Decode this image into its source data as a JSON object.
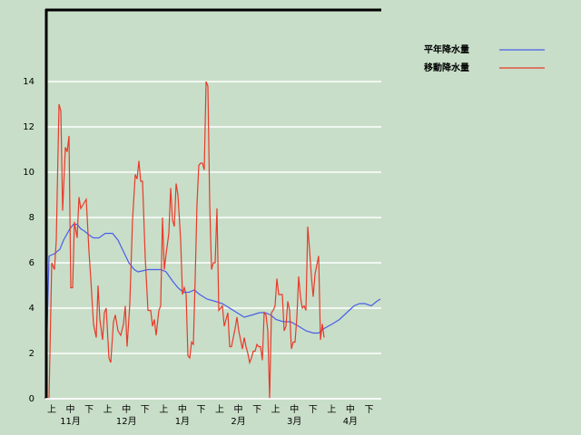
{
  "chart_data": {
    "type": "line",
    "categories": [
      "上",
      "中",
      "下",
      "上",
      "中",
      "下",
      "上",
      "中",
      "下",
      "上",
      "中",
      "下",
      "上",
      "中",
      "下",
      "上",
      "中",
      "下"
    ],
    "month_labels": [
      "11月",
      "12月",
      "1月",
      "2月",
      "3月",
      "4月"
    ],
    "xlim": [
      0,
      370
    ],
    "ylim": [
      0,
      17.2
    ],
    "yticks": [
      0,
      2,
      4,
      6,
      8,
      10,
      12,
      14
    ],
    "grid": true,
    "legend": "right",
    "series": [
      {
        "name": "平年降水量",
        "color": "#4a5ee8",
        "x": [
          0,
          4,
          10,
          16,
          20,
          27,
          31,
          35,
          39,
          43,
          49,
          53,
          59,
          66,
          74,
          80,
          86,
          92,
          98,
          102,
          113,
          127,
          133,
          140,
          146,
          152,
          158,
          164,
          170,
          178,
          187,
          195,
          203,
          211,
          219,
          228,
          236,
          242,
          248,
          254,
          262,
          270,
          279,
          287,
          295,
          301,
          307,
          316,
          324,
          332,
          340,
          346,
          352,
          359,
          365,
          369
        ],
        "values": [
          0,
          6.3,
          6.4,
          6.6,
          7.0,
          7.5,
          7.7,
          7.7,
          7.5,
          7.4,
          7.2,
          7.1,
          7.1,
          7.3,
          7.3,
          7.0,
          6.5,
          6.0,
          5.7,
          5.6,
          5.7,
          5.7,
          5.6,
          5.2,
          4.9,
          4.7,
          4.7,
          4.8,
          4.6,
          4.4,
          4.3,
          4.2,
          4.0,
          3.8,
          3.6,
          3.7,
          3.8,
          3.8,
          3.7,
          3.5,
          3.4,
          3.4,
          3.2,
          3.0,
          2.9,
          2.9,
          3.1,
          3.3,
          3.5,
          3.8,
          4.1,
          4.2,
          4.2,
          4.1,
          4.3,
          4.4
        ]
      },
      {
        "name": "移動降水量",
        "color": "#e83a2a",
        "x": [
          4,
          7,
          10,
          12,
          15,
          17,
          19,
          22,
          24,
          26,
          28,
          30,
          32,
          35,
          37,
          39,
          42,
          45,
          48,
          50,
          53,
          56,
          58,
          60,
          63,
          65,
          67,
          70,
          72,
          75,
          77,
          80,
          83,
          86,
          88,
          90,
          93,
          96,
          99,
          101,
          103,
          105,
          107,
          110,
          113,
          116,
          118,
          120,
          122,
          125,
          127,
          129,
          131,
          133,
          136,
          138,
          140,
          142,
          144,
          146,
          149,
          151,
          153,
          155,
          157,
          159,
          161,
          163,
          165,
          167,
          169,
          171,
          173,
          175,
          177,
          179,
          181,
          183,
          185,
          187,
          189,
          191,
          193,
          195,
          197,
          199,
          201,
          203,
          205,
          207,
          209,
          211,
          213,
          215,
          217,
          219,
          221,
          223,
          225,
          227,
          229,
          231,
          233,
          235,
          237,
          239,
          241,
          243,
          245,
          247,
          249,
          251,
          253,
          255,
          257,
          259,
          261,
          263,
          265,
          267,
          269,
          271,
          273,
          275,
          277,
          279,
          281,
          283,
          285,
          287,
          289,
          291,
          293,
          295,
          297,
          299,
          301,
          303,
          305,
          307
        ],
        "values": [
          0,
          6.0,
          5.7,
          7.0,
          13.0,
          12.7,
          8.3,
          11.1,
          10.9,
          11.6,
          4.9,
          4.9,
          7.8,
          7.1,
          8.9,
          8.4,
          8.6,
          8.8,
          6.5,
          5.3,
          3.3,
          2.7,
          5.0,
          3.5,
          2.6,
          3.8,
          4.0,
          1.8,
          1.6,
          3.4,
          3.7,
          3.0,
          2.8,
          3.3,
          4.1,
          2.3,
          4.2,
          7.9,
          9.9,
          9.7,
          10.5,
          9.6,
          9.6,
          6.2,
          3.9,
          3.9,
          3.2,
          3.5,
          2.8,
          3.9,
          4.1,
          8.0,
          5.7,
          6.4,
          7.3,
          9.3,
          7.9,
          7.6,
          9.5,
          9.0,
          7.0,
          4.6,
          4.9,
          4.6,
          1.9,
          1.8,
          2.5,
          2.4,
          5.3,
          8.6,
          10.3,
          10.4,
          10.4,
          10.1,
          14.0,
          13.8,
          8.6,
          5.7,
          6.0,
          6.0,
          8.4,
          3.9,
          4.0,
          4.1,
          3.2,
          3.5,
          3.8,
          2.3,
          2.3,
          2.7,
          3.1,
          3.6,
          3.0,
          2.6,
          2.2,
          2.7,
          2.3,
          2.0,
          1.6,
          1.8,
          2.1,
          2.1,
          2.4,
          2.3,
          2.3,
          1.7,
          3.8,
          3.7,
          3.0,
          0.0,
          3.8,
          3.9,
          4.1,
          5.3,
          4.6,
          4.6,
          4.6,
          3.0,
          3.2,
          4.3,
          3.9,
          2.2,
          2.5,
          2.5,
          3.6,
          5.4,
          4.5,
          4.0,
          4.1,
          3.9,
          7.6,
          6.6,
          5.4,
          4.5,
          5.5,
          5.9,
          6.3,
          2.6,
          3.3,
          2.7
        ]
      }
    ]
  }
}
